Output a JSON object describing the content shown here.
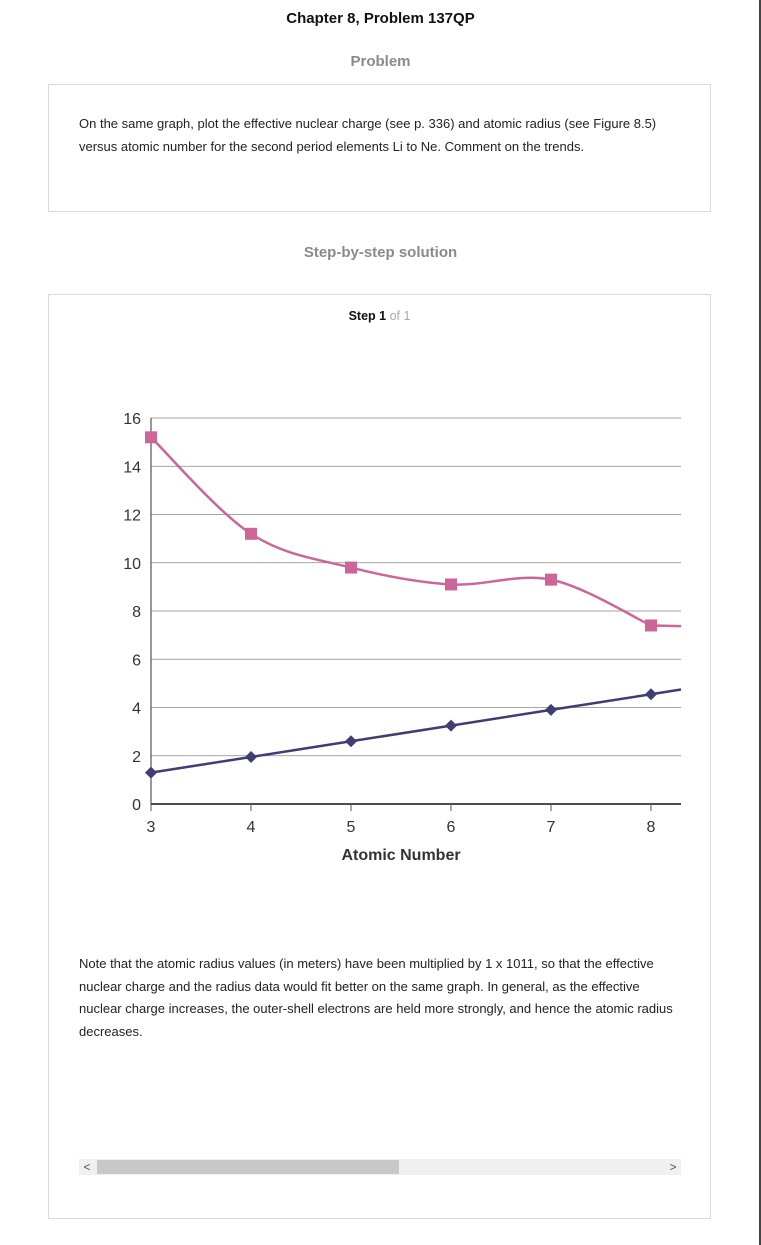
{
  "page_title": "Chapter 8, Problem 137QP",
  "problem_heading": "Problem",
  "problem_text": "On the same graph, plot the effective nuclear charge (see p. 336) and atomic radius (see Figure 8.5) versus atomic number for the second period elements Li to Ne. Comment on the trends.",
  "solution_heading": "Step-by-step solution",
  "step": {
    "label": "Step",
    "number": "1",
    "of_text": "of 1"
  },
  "note_text": "Note that the atomic radius values (in meters) have been multiplied by 1 x 1011, so that the effective nuclear charge and the radius data would fit better on the same graph.  In general, as the effective nuclear charge increases, the outer-shell electrons are held more strongly, and hence the atomic radius decreases.",
  "scrollbar": {
    "left_arrow": "<",
    "right_arrow": ">",
    "thumb_fraction": 0.5
  },
  "chart_data": {
    "type": "line",
    "title": "",
    "xlabel": "Atomic Number",
    "ylabel": "",
    "xlim": [
      3,
      8.3
    ],
    "ylim": [
      0,
      16
    ],
    "x_ticks": [
      "3",
      "4",
      "5",
      "6",
      "7",
      "8"
    ],
    "y_ticks": [
      "0",
      "2",
      "4",
      "6",
      "8",
      "10",
      "12",
      "14",
      "16"
    ],
    "grid": true,
    "legend": "none",
    "series": [
      {
        "color": "#cc6699",
        "marker": "square",
        "smooth": true,
        "x": [
          3,
          4,
          5,
          6,
          7,
          8
        ],
        "y": [
          15.2,
          11.2,
          9.8,
          9.1,
          9.3,
          7.4
        ]
      },
      {
        "color": "#3f3d72",
        "marker": "diamond",
        "smooth": false,
        "x": [
          3,
          4,
          5,
          6,
          7,
          8
        ],
        "y": [
          1.3,
          1.95,
          2.6,
          3.25,
          3.9,
          4.55
        ]
      }
    ]
  }
}
